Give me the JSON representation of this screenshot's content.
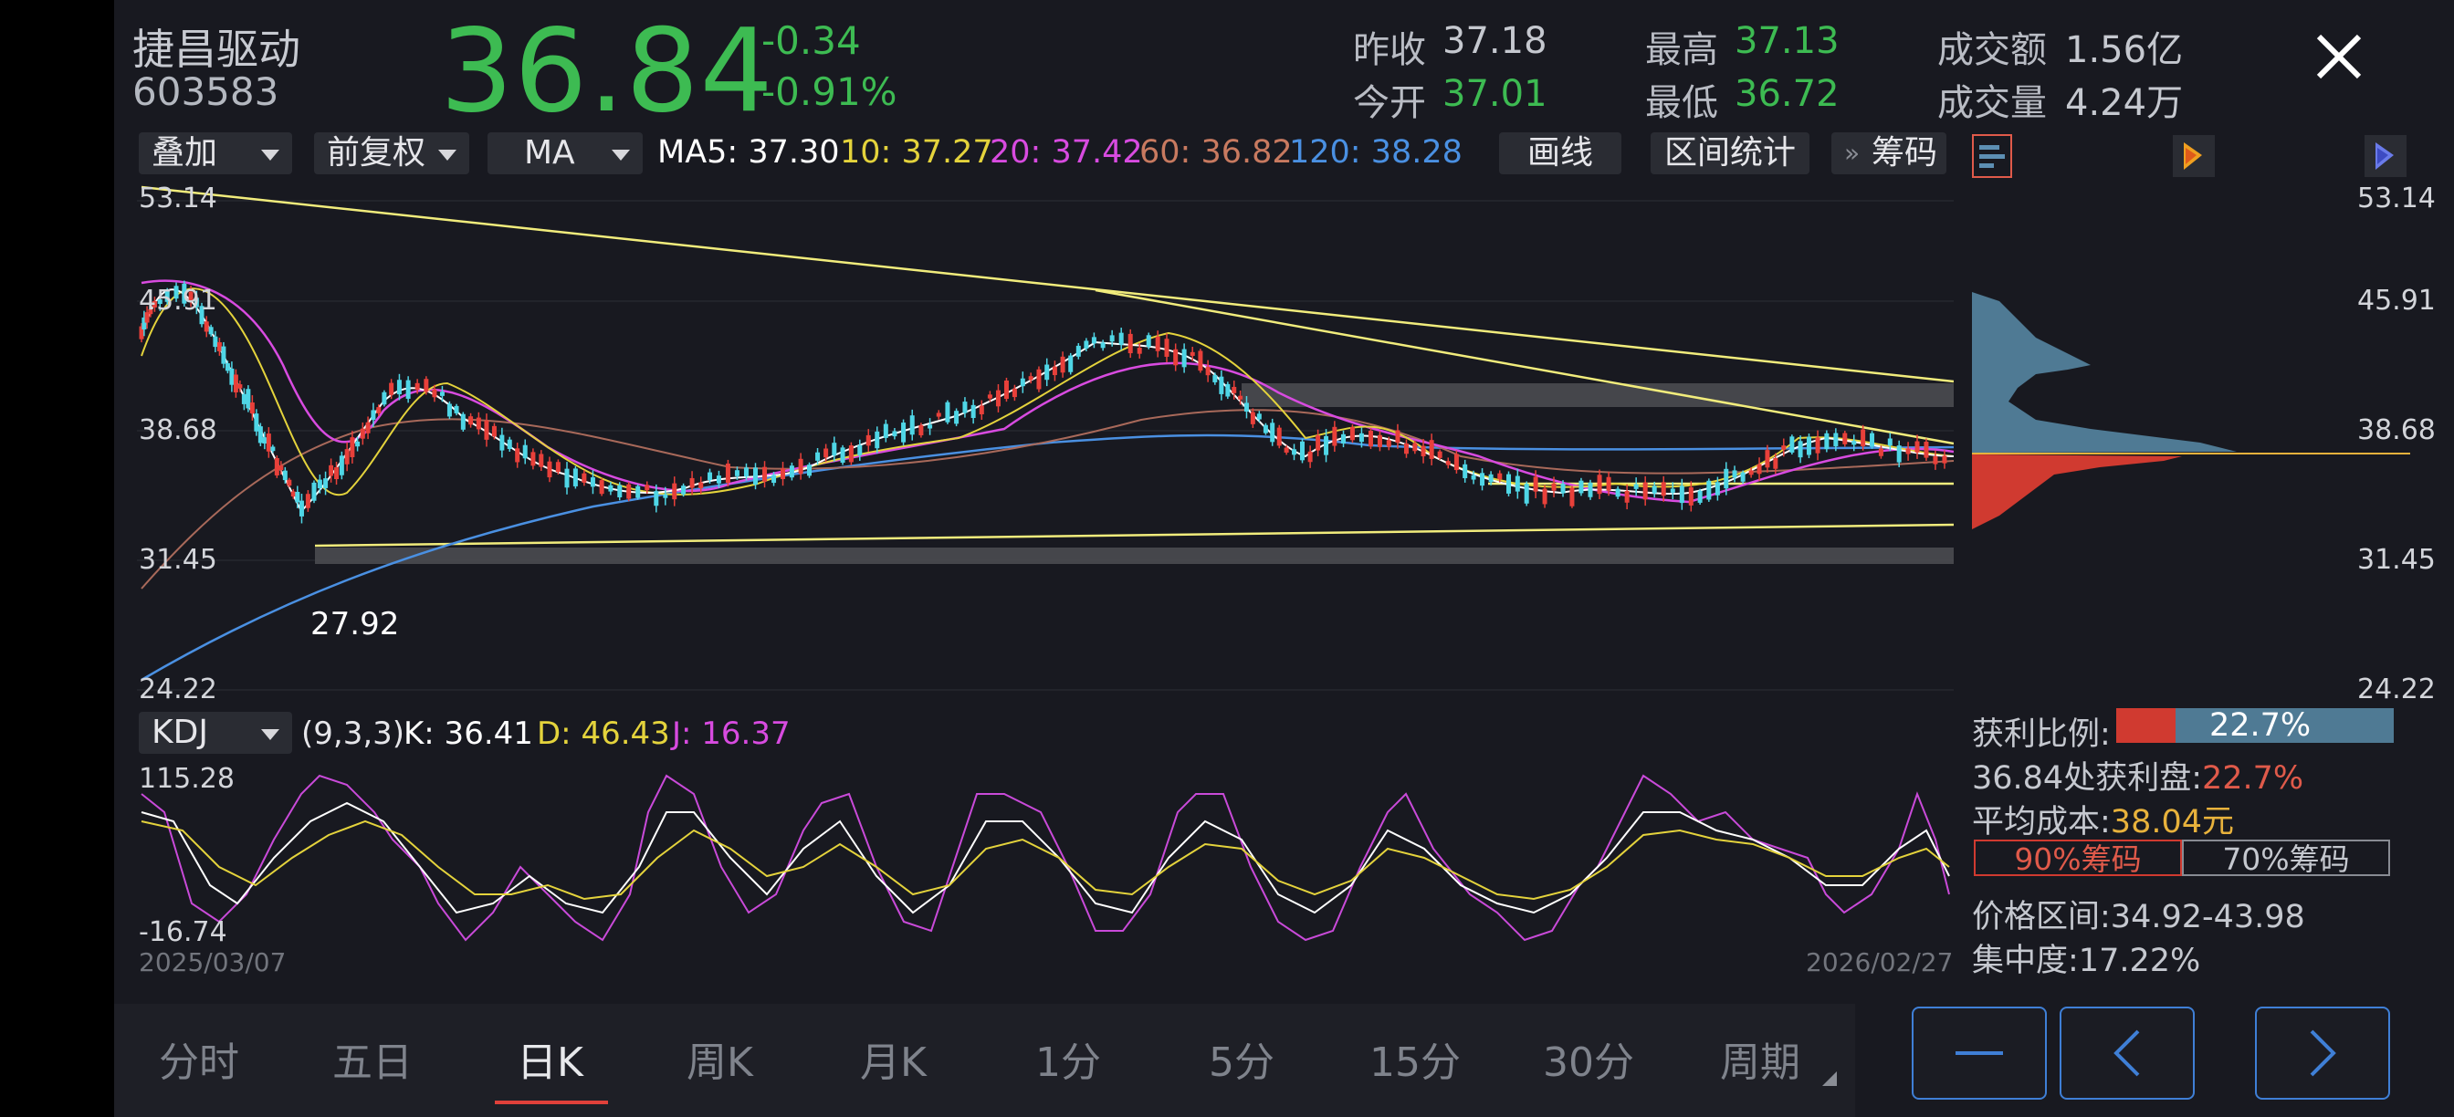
{
  "stock": {
    "name": "捷昌驱动",
    "code": "603583",
    "price": "36.84",
    "change": "-0.34",
    "change_pct": "-0.91%"
  },
  "quote": {
    "prev_close_label": "昨收",
    "prev_close": "37.18",
    "open_label": "今开",
    "open": "37.01",
    "high_label": "最高",
    "high": "37.13",
    "low_label": "最低",
    "low": "36.72",
    "amount_label": "成交额",
    "amount": "1.56亿",
    "volume_label": "成交量",
    "volume": "4.24万"
  },
  "toolbar": {
    "overlay": "叠加",
    "adjust": "前复权",
    "indicator": "MA",
    "ma5": "MA5: 37.30",
    "ma10": "10: 37.27",
    "ma20": "20: 37.42",
    "ma60": "60: 36.82",
    "ma120": "120: 38.28",
    "draw": "画线",
    "range_stats": "区间统计",
    "chips": "筹码",
    "ma_colors": {
      "ma5": "#ffffff",
      "ma10": "#e4d33c",
      "ma20": "#d84be0",
      "ma60": "#c87a60",
      "ma120": "#4a90e2"
    }
  },
  "kline": {
    "y_top": "53.14",
    "y_2": "45.91",
    "y_3": "38.68",
    "y_4": "31.45",
    "y_bottom": "24.22",
    "low_marker": "27.92",
    "start_date": "2025/03/07",
    "end_date": "2026/02/27",
    "up_color": "#e8403a",
    "down_color": "#4fd6e6"
  },
  "kdj": {
    "indicator": "KDJ",
    "params": "(9,3,3)",
    "k": "K: 36.41",
    "d": "D: 46.43",
    "j": "J: 16.37",
    "y_top": "115.28",
    "y_bottom": "-16.74"
  },
  "chips_panel": {
    "profit_label": "获利比例:",
    "profit_value": "22.7%",
    "profit_at": "36.84处获利盘:",
    "profit_at_value": "22.7%",
    "avg_cost_label": "平均成本:",
    "avg_cost_value": "38.04元",
    "tab90": "90%筹码",
    "tab70": "70%筹码",
    "range_label": "价格区间:",
    "range_value": "34.92-43.98",
    "concentration_label": "集中度:",
    "concentration_value": "17.22%"
  },
  "periods": [
    "分时",
    "五日",
    "日K",
    "周K",
    "月K",
    "1分",
    "5分",
    "15分",
    "30分",
    "周期"
  ],
  "active_period": "日K"
}
